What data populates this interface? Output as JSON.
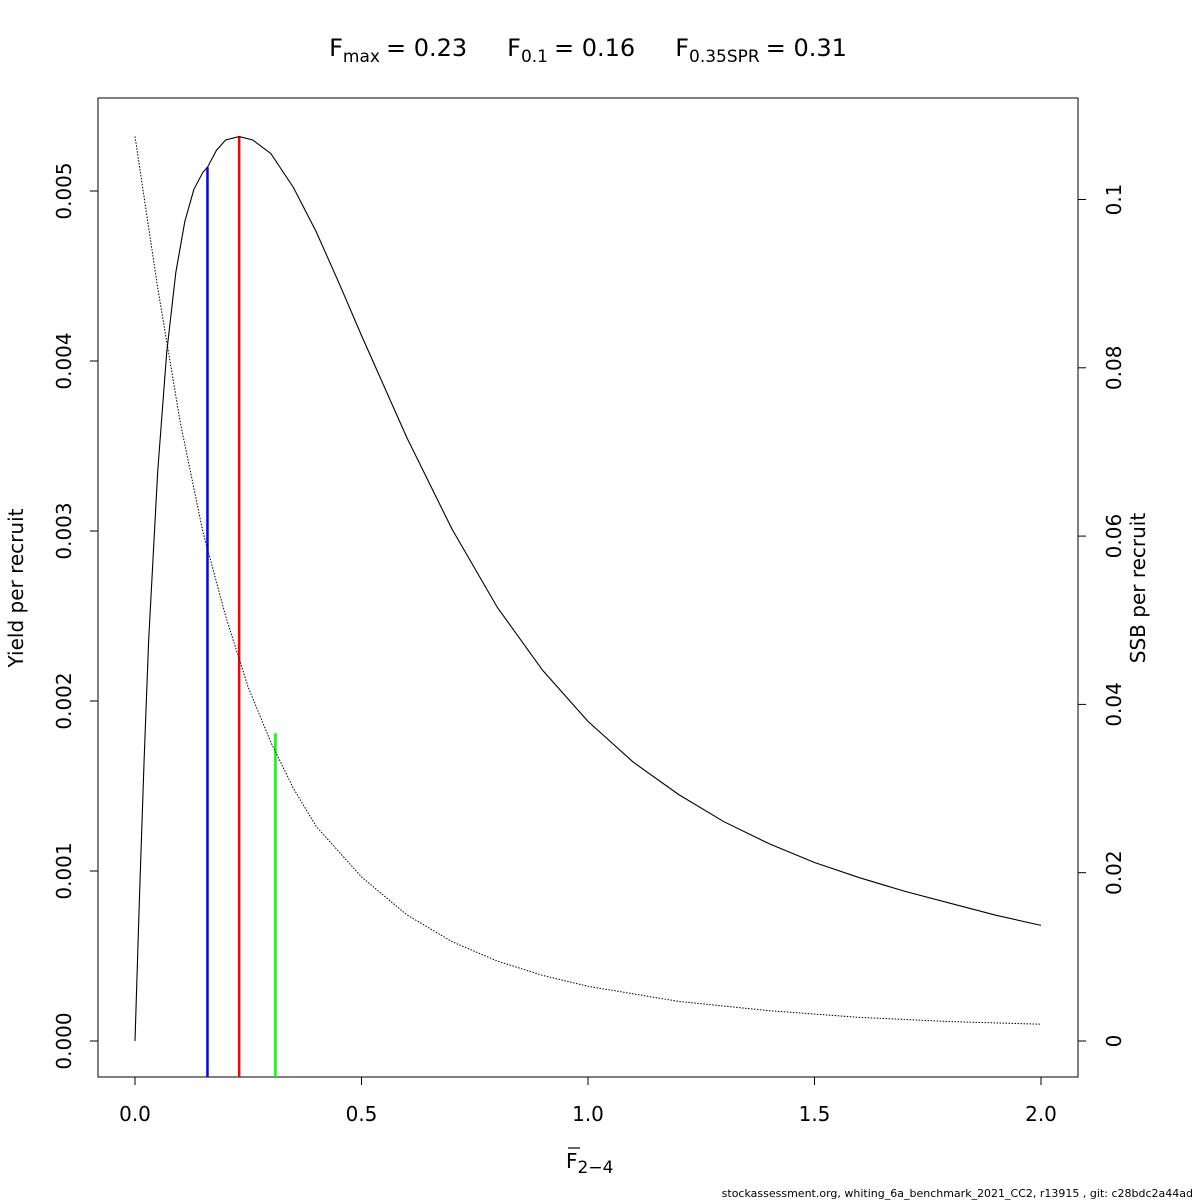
{
  "chart_data": {
    "type": "line",
    "title": {
      "fmax": {
        "symbol": "F",
        "subscript": "max",
        "value": "= 0.23"
      },
      "f01": {
        "symbol": "F",
        "subscript": "0.1",
        "value": "= 0.16"
      },
      "f035spr": {
        "symbol": "F",
        "subscript": "0.35SPR",
        "value": "= 0.31"
      }
    },
    "xlabel": {
      "symbol": "F",
      "subscript": "2−4"
    },
    "ylabel_left": "Yield per recruit",
    "ylabel_right": "SSB per recruit",
    "xlim": [
      0,
      2
    ],
    "ylim_left": [
      0,
      0.0053
    ],
    "ylim_right": [
      0,
      0.11
    ],
    "x_ticks": [
      "0.0",
      "0.5",
      "1.0",
      "1.5",
      "2.0"
    ],
    "y_left_ticks": [
      "0.000",
      "0.001",
      "0.002",
      "0.003",
      "0.004",
      "0.005"
    ],
    "y_right_ticks": [
      "0",
      "0.02",
      "0.04",
      "0.06",
      "0.08",
      "0.1"
    ],
    "series": [
      {
        "axis": "left",
        "style": "solid",
        "color": "#000000",
        "x": [
          0,
          0.01,
          0.02,
          0.03,
          0.05,
          0.07,
          0.09,
          0.11,
          0.13,
          0.15,
          0.16,
          0.18,
          0.2,
          0.23,
          0.26,
          0.3,
          0.35,
          0.4,
          0.45,
          0.5,
          0.6,
          0.7,
          0.8,
          0.9,
          1.0,
          1.1,
          1.2,
          1.3,
          1.4,
          1.5,
          1.6,
          1.7,
          1.8,
          1.9,
          2.0
        ],
        "y": [
          0.0,
          0.00085,
          0.00165,
          0.00235,
          0.00335,
          0.00405,
          0.00452,
          0.00482,
          0.00501,
          0.00511,
          0.00514,
          0.00524,
          0.0053,
          0.00532,
          0.0053,
          0.00522,
          0.00502,
          0.00476,
          0.00446,
          0.00415,
          0.00355,
          0.00301,
          0.00255,
          0.00218,
          0.00188,
          0.00164,
          0.00145,
          0.00129,
          0.00116,
          0.00105,
          0.00096,
          0.00088,
          0.00081,
          0.00074,
          0.00068
        ]
      },
      {
        "axis": "right",
        "style": "dotted",
        "color": "#000000",
        "x": [
          0,
          0.05,
          0.1,
          0.15,
          0.2,
          0.25,
          0.3,
          0.35,
          0.4,
          0.5,
          0.6,
          0.7,
          0.8,
          0.9,
          1.0,
          1.2,
          1.4,
          1.6,
          1.8,
          2.0
        ],
        "y": [
          0.1075,
          0.0895,
          0.0735,
          0.0605,
          0.0505,
          0.042,
          0.0355,
          0.03,
          0.0255,
          0.0195,
          0.015,
          0.0118,
          0.0095,
          0.0078,
          0.0065,
          0.0047,
          0.0036,
          0.0028,
          0.0023,
          0.002
        ]
      }
    ],
    "reference_lines": [
      {
        "name": "F0.1",
        "x": 0.16,
        "y_top": 0.00514,
        "color": "#0000ff"
      },
      {
        "name": "Fmax",
        "x": 0.23,
        "y_top": 0.00532,
        "color": "#ff0000"
      },
      {
        "name": "F0.35SPR",
        "x": 0.31,
        "y_top": 0.00181,
        "color": "#00ff00"
      }
    ],
    "grid": false
  },
  "footer": "stockassessment.org, whiting_6a_benchmark_2021_CC2, r13915 , git: c28bdc2a44ad"
}
